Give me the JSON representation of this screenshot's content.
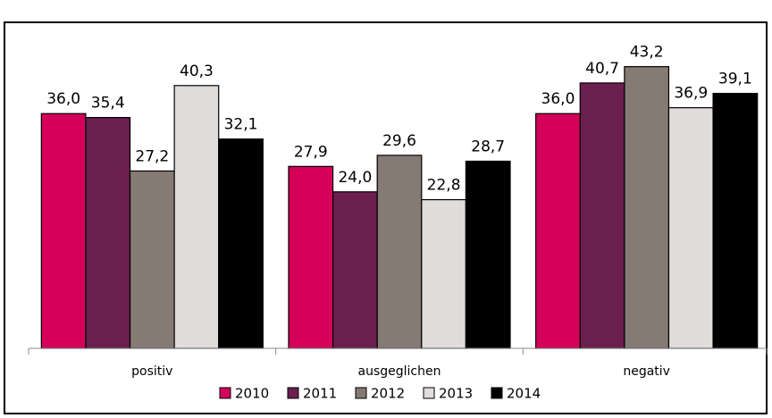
{
  "chart_data": {
    "type": "bar",
    "categories": [
      "positiv",
      "ausgeglichen",
      "negativ"
    ],
    "series": [
      {
        "name": "2010",
        "color": "#d4005a",
        "values": [
          36.0,
          27.9,
          36.0
        ],
        "value_labels": [
          "36,0",
          "27,9",
          "36,0"
        ]
      },
      {
        "name": "2011",
        "color": "#6b1f4f",
        "values": [
          35.4,
          24.0,
          40.7
        ],
        "value_labels": [
          "35,4",
          "24,0",
          "40,7"
        ]
      },
      {
        "name": "2012",
        "color": "#857a74",
        "values": [
          27.2,
          29.6,
          43.2
        ],
        "value_labels": [
          "27,2",
          "29,6",
          "43,2"
        ]
      },
      {
        "name": "2013",
        "color": "#e0dcdc",
        "values": [
          40.3,
          22.8,
          36.9
        ],
        "value_labels": [
          "40,3",
          "22,8",
          "36,9"
        ]
      },
      {
        "name": "2014",
        "color": "#000000",
        "values": [
          32.1,
          28.7,
          39.1
        ],
        "value_labels": [
          "32,1",
          "28,7",
          "39,1"
        ]
      }
    ],
    "ylim": [
      0,
      50
    ],
    "legend": "bottom"
  }
}
